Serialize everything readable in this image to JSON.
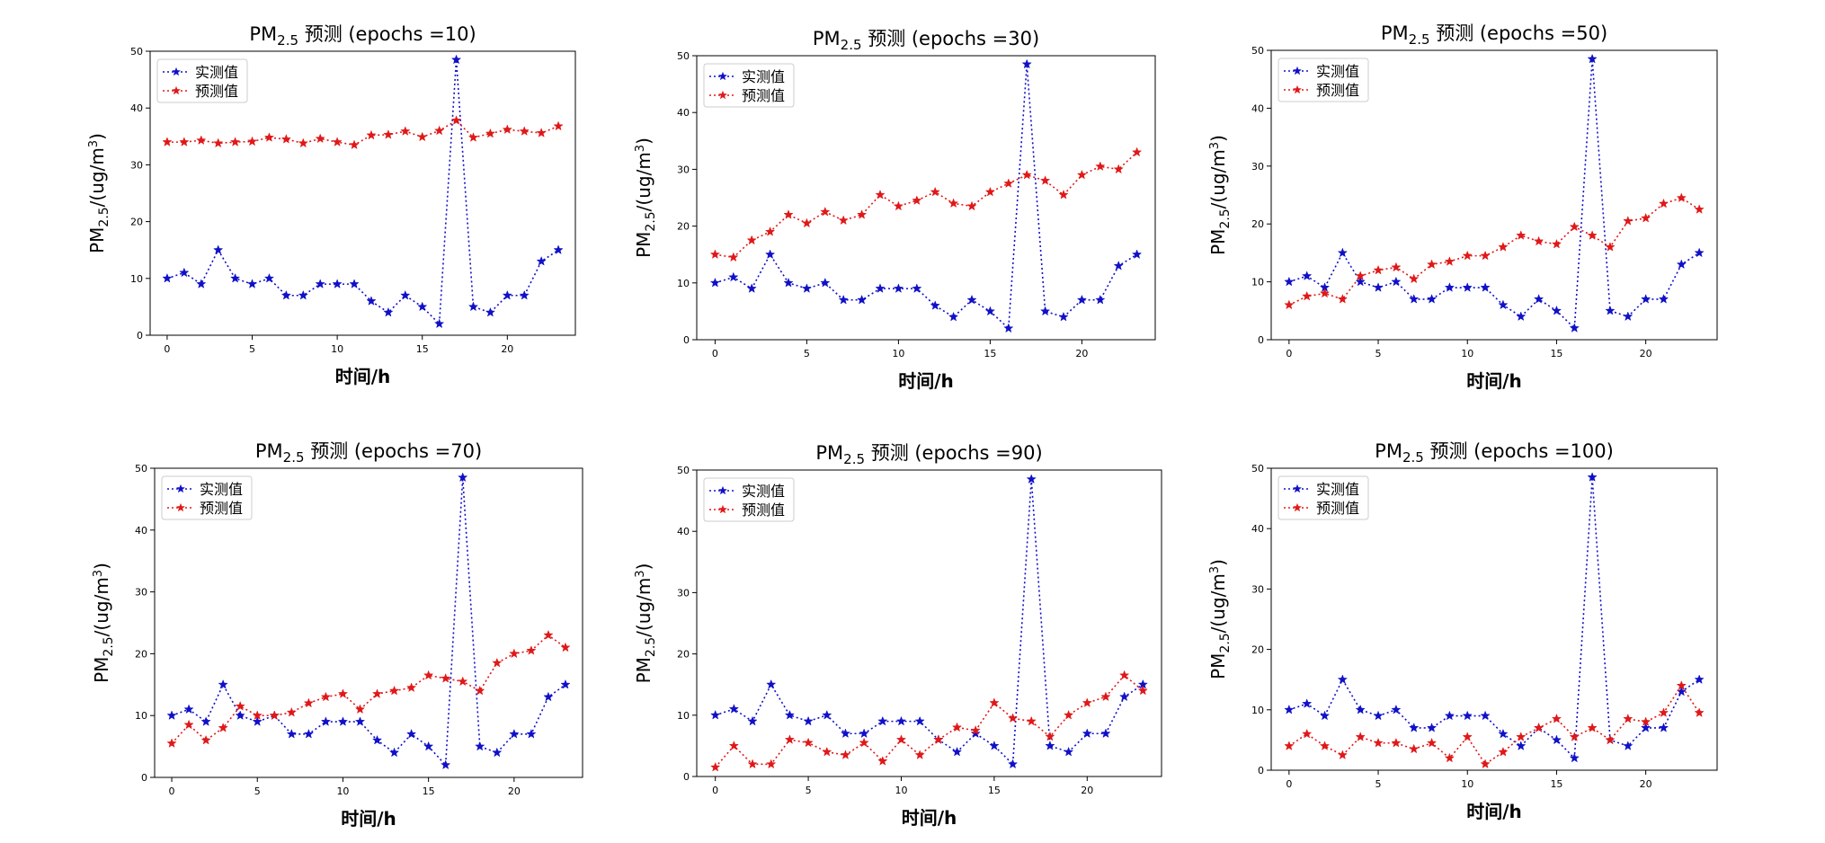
{
  "colors": {
    "measured": "#1010c8",
    "predicted": "#e01818",
    "legend_border": "#cccccc"
  },
  "chart_data": [
    {
      "type": "line",
      "title": {
        "prefix": "PM",
        "sub": "2.5",
        "suffix": "预测 (epochs =10)"
      },
      "xlabel": "时间/h",
      "ylabel": {
        "prefix": "PM",
        "sub": "2.5",
        "mid": "/(ug/m",
        "sup": "3",
        "end": ")"
      },
      "xlim": [
        -1,
        24
      ],
      "ylim": [
        0,
        50
      ],
      "xticks": [
        0,
        5,
        10,
        15,
        20
      ],
      "yticks": [
        0,
        10,
        20,
        30,
        40,
        50
      ],
      "legend": "upper-left",
      "x": [
        0,
        1,
        2,
        3,
        4,
        5,
        6,
        7,
        8,
        9,
        10,
        11,
        12,
        13,
        14,
        15,
        16,
        17,
        18,
        19,
        20,
        21,
        22,
        23
      ],
      "series": [
        {
          "name": "实测值",
          "values": [
            10,
            11,
            9,
            15,
            10,
            9,
            10,
            7,
            7,
            9,
            9,
            9,
            6,
            4,
            7,
            5,
            2,
            48.5,
            5,
            4,
            7,
            7,
            13,
            15
          ]
        },
        {
          "name": "预测值",
          "values": [
            34,
            34,
            34.3,
            33.8,
            34,
            34.1,
            34.8,
            34.5,
            33.8,
            34.6,
            34,
            33.5,
            35.2,
            35.3,
            35.9,
            34.9,
            36,
            37.8,
            34.8,
            35.5,
            36.2,
            35.9,
            35.6,
            36.8
          ]
        }
      ]
    },
    {
      "type": "line",
      "title": {
        "prefix": "PM",
        "sub": "2.5",
        "suffix": "预测 (epochs =30)"
      },
      "xlabel": "时间/h",
      "ylabel": {
        "prefix": "PM",
        "sub": "2.5",
        "mid": "/(ug/m",
        "sup": "3",
        "end": ")"
      },
      "xlim": [
        -1,
        24
      ],
      "ylim": [
        0,
        50
      ],
      "xticks": [
        0,
        5,
        10,
        15,
        20
      ],
      "yticks": [
        0,
        10,
        20,
        30,
        40,
        50
      ],
      "legend": "upper-left",
      "x": [
        0,
        1,
        2,
        3,
        4,
        5,
        6,
        7,
        8,
        9,
        10,
        11,
        12,
        13,
        14,
        15,
        16,
        17,
        18,
        19,
        20,
        21,
        22,
        23
      ],
      "series": [
        {
          "name": "实测值",
          "values": [
            10,
            11,
            9,
            15,
            10,
            9,
            10,
            7,
            7,
            9,
            9,
            9,
            6,
            4,
            7,
            5,
            2,
            48.5,
            5,
            4,
            7,
            7,
            13,
            15
          ]
        },
        {
          "name": "预测值",
          "values": [
            15,
            14.5,
            17.5,
            19,
            22,
            20.5,
            22.5,
            21,
            22,
            25.5,
            23.5,
            24.5,
            26,
            24,
            23.5,
            26,
            27.5,
            29,
            28,
            25.5,
            29,
            30.5,
            30,
            33
          ]
        }
      ]
    },
    {
      "type": "line",
      "title": {
        "prefix": "PM",
        "sub": "2.5",
        "suffix": "预测 (epochs =50)"
      },
      "xlabel": "时间/h",
      "ylabel": {
        "prefix": "PM",
        "sub": "2.5",
        "mid": "/(ug/m",
        "sup": "3",
        "end": ")"
      },
      "xlim": [
        -1,
        24
      ],
      "ylim": [
        0,
        50
      ],
      "xticks": [
        0,
        5,
        10,
        15,
        20
      ],
      "yticks": [
        0,
        10,
        20,
        30,
        40,
        50
      ],
      "legend": "upper-left",
      "x": [
        0,
        1,
        2,
        3,
        4,
        5,
        6,
        7,
        8,
        9,
        10,
        11,
        12,
        13,
        14,
        15,
        16,
        17,
        18,
        19,
        20,
        21,
        22,
        23
      ],
      "series": [
        {
          "name": "实测值",
          "values": [
            10,
            11,
            9,
            15,
            10,
            9,
            10,
            7,
            7,
            9,
            9,
            9,
            6,
            4,
            7,
            5,
            2,
            48.5,
            5,
            4,
            7,
            7,
            13,
            15
          ]
        },
        {
          "name": "预测值",
          "values": [
            6,
            7.5,
            8,
            7,
            11,
            12,
            12.5,
            10.5,
            13,
            13.5,
            14.5,
            14.5,
            16,
            18,
            17,
            16.5,
            19.5,
            18,
            16,
            20.5,
            21,
            23.5,
            24.5,
            22.5
          ]
        }
      ]
    },
    {
      "type": "line",
      "title": {
        "prefix": "PM",
        "sub": "2.5",
        "suffix": "预测 (epochs =70)"
      },
      "xlabel": "时间/h",
      "ylabel": {
        "prefix": "PM",
        "sub": "2.5",
        "mid": "/(ug/m",
        "sup": "3",
        "end": ")"
      },
      "xlim": [
        -1,
        24
      ],
      "ylim": [
        0,
        50
      ],
      "xticks": [
        0,
        5,
        10,
        15,
        20
      ],
      "yticks": [
        0,
        10,
        20,
        30,
        40,
        50
      ],
      "legend": "upper-left",
      "x": [
        0,
        1,
        2,
        3,
        4,
        5,
        6,
        7,
        8,
        9,
        10,
        11,
        12,
        13,
        14,
        15,
        16,
        17,
        18,
        19,
        20,
        21,
        22,
        23
      ],
      "series": [
        {
          "name": "实测值",
          "values": [
            10,
            11,
            9,
            15,
            10,
            9,
            10,
            7,
            7,
            9,
            9,
            9,
            6,
            4,
            7,
            5,
            2,
            48.5,
            5,
            4,
            7,
            7,
            13,
            15
          ]
        },
        {
          "name": "预测值",
          "values": [
            5.5,
            8.5,
            6,
            8,
            11.5,
            10,
            10,
            10.5,
            12,
            13,
            13.5,
            11,
            13.5,
            14,
            14.5,
            16.5,
            16,
            15.5,
            14,
            18.5,
            20,
            20.5,
            23,
            21
          ]
        }
      ]
    },
    {
      "type": "line",
      "title": {
        "prefix": "PM",
        "sub": "2.5",
        "suffix": "预测 (epochs =90)"
      },
      "xlabel": "时间/h",
      "ylabel": {
        "prefix": "PM",
        "sub": "2.5",
        "mid": "/(ug/m",
        "sup": "3",
        "end": ")"
      },
      "xlim": [
        -1,
        24
      ],
      "ylim": [
        0,
        50
      ],
      "xticks": [
        0,
        5,
        10,
        15,
        20
      ],
      "yticks": [
        0,
        10,
        20,
        30,
        40,
        50
      ],
      "legend": "upper-left",
      "x": [
        0,
        1,
        2,
        3,
        4,
        5,
        6,
        7,
        8,
        9,
        10,
        11,
        12,
        13,
        14,
        15,
        16,
        17,
        18,
        19,
        20,
        21,
        22,
        23
      ],
      "series": [
        {
          "name": "实测值",
          "values": [
            10,
            11,
            9,
            15,
            10,
            9,
            10,
            7,
            7,
            9,
            9,
            9,
            6,
            4,
            7,
            5,
            2,
            48.5,
            5,
            4,
            7,
            7,
            13,
            15
          ]
        },
        {
          "name": "预测值",
          "values": [
            1.5,
            5,
            2,
            2,
            6,
            5.5,
            4,
            3.5,
            5.5,
            2.5,
            6,
            3.5,
            6,
            8,
            7.5,
            12,
            9.5,
            9,
            6.5,
            10,
            12,
            13,
            16.5,
            14
          ]
        }
      ]
    },
    {
      "type": "line",
      "title": {
        "prefix": "PM",
        "sub": "2.5",
        "suffix": "预测 (epochs =100)"
      },
      "xlabel": "时间/h",
      "ylabel": {
        "prefix": "PM",
        "sub": "2.5",
        "mid": "/(ug/m",
        "sup": "3",
        "end": ")"
      },
      "xlim": [
        -1,
        24
      ],
      "ylim": [
        0,
        50
      ],
      "xticks": [
        0,
        5,
        10,
        15,
        20
      ],
      "yticks": [
        0,
        10,
        20,
        30,
        40,
        50
      ],
      "legend": "upper-left",
      "x": [
        0,
        1,
        2,
        3,
        4,
        5,
        6,
        7,
        8,
        9,
        10,
        11,
        12,
        13,
        14,
        15,
        16,
        17,
        18,
        19,
        20,
        21,
        22,
        23
      ],
      "series": [
        {
          "name": "实测值",
          "values": [
            10,
            11,
            9,
            15,
            10,
            9,
            10,
            7,
            7,
            9,
            9,
            9,
            6,
            4,
            7,
            5,
            2,
            48.5,
            5,
            4,
            7,
            7,
            13,
            15
          ]
        },
        {
          "name": "预测值",
          "values": [
            4,
            6,
            4,
            2.5,
            5.5,
            4.5,
            4.5,
            3.5,
            4.5,
            2,
            5.5,
            1,
            3,
            5.5,
            7,
            8.5,
            5.5,
            7,
            5,
            8.5,
            8,
            9.5,
            14,
            9.5
          ]
        }
      ]
    }
  ]
}
